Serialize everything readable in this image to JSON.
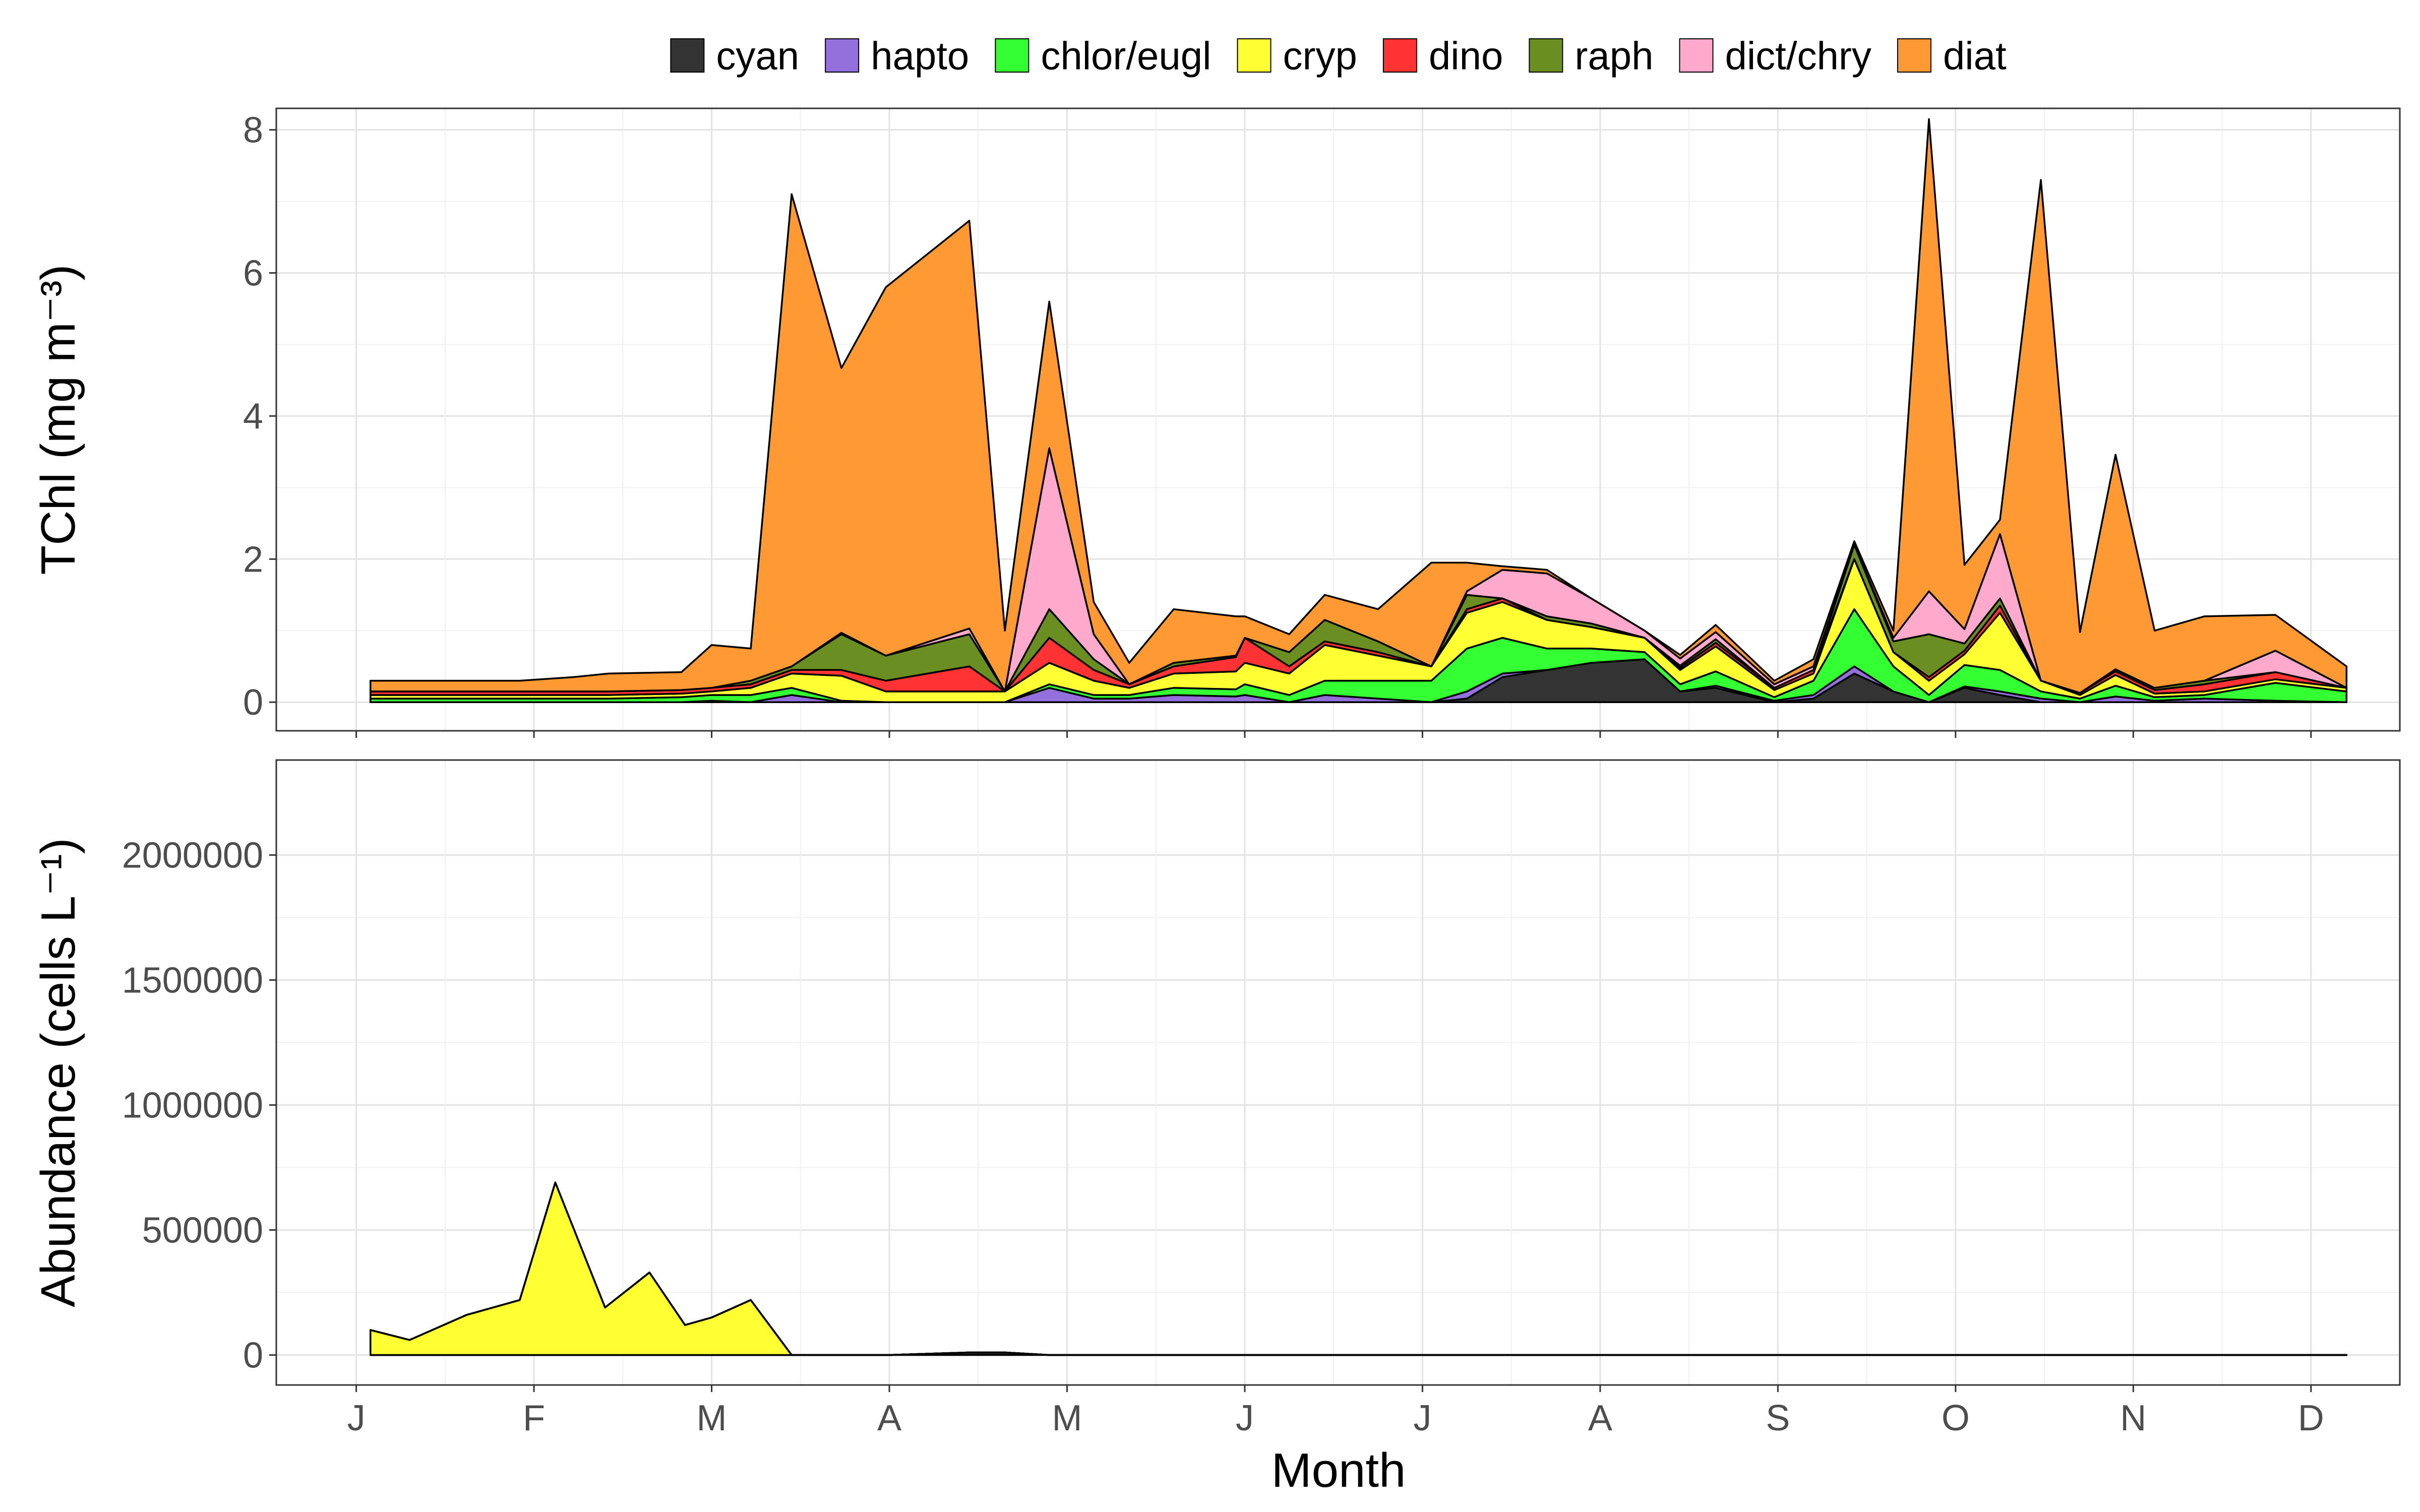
{
  "legend": {
    "items": [
      {
        "key": "cyan",
        "label": "cyan",
        "color": "#333333"
      },
      {
        "key": "hapto",
        "label": "hapto",
        "color": "#9370DB"
      },
      {
        "key": "chlor",
        "label": "chlor/eugl",
        "color": "#33FF33"
      },
      {
        "key": "cryp",
        "label": "cryp",
        "color": "#FFFF33"
      },
      {
        "key": "dino",
        "label": "dino",
        "color": "#FF3333"
      },
      {
        "key": "raph",
        "label": "raph",
        "color": "#6B8E23"
      },
      {
        "key": "dict",
        "label": "dict/chry",
        "color": "#FFAACC"
      },
      {
        "key": "diat",
        "label": "diat",
        "color": "#FF9933"
      }
    ]
  },
  "xaxis": {
    "title": "Month"
  },
  "chart_data": [
    {
      "type": "area",
      "stacked": true,
      "ylabel": "TChl (mg m⁻³)",
      "ylim": [
        -0.4,
        8.3
      ],
      "yticks": [
        0,
        2,
        4,
        6,
        8
      ],
      "xlim": [
        0.55,
        12.5
      ],
      "xticks": [
        1,
        2,
        3,
        4,
        5,
        6,
        7,
        8,
        9,
        10,
        11,
        12
      ],
      "xticklabels": [
        "J",
        "F",
        "M",
        "A",
        "M",
        "J",
        "J",
        "A",
        "S",
        "O",
        "N",
        "D"
      ],
      "grid": true,
      "x": [
        1.08,
        1.28,
        1.62,
        1.92,
        2.22,
        2.42,
        2.62,
        2.83,
        3.0,
        3.22,
        3.45,
        3.73,
        3.98,
        4.45,
        4.65,
        4.9,
        5.15,
        5.35,
        5.6,
        5.95,
        6.0,
        6.25,
        6.45,
        6.75,
        7.05,
        7.25,
        7.45,
        7.7,
        7.95,
        8.25,
        8.45,
        8.65,
        8.98,
        9.2,
        9.43,
        9.65,
        9.85,
        10.05,
        10.25,
        10.48,
        10.7,
        10.9,
        11.12,
        11.4,
        11.8,
        12.2
      ],
      "series": [
        {
          "name": "cyan",
          "values": [
            0.0,
            0.0,
            0.0,
            0.0,
            0.0,
            0.0,
            0.0,
            0.0,
            0.0,
            0.0,
            0.0,
            0.0,
            0.0,
            0.0,
            0.0,
            0.0,
            0.0,
            0.0,
            0.0,
            0.0,
            0.0,
            0.0,
            0.0,
            0.0,
            0.0,
            0.05,
            0.35,
            0.45,
            0.55,
            0.6,
            0.15,
            0.2,
            0.0,
            0.05,
            0.4,
            0.15,
            0.0,
            0.2,
            0.1,
            0.0,
            0.0,
            0.0,
            0.0,
            0.0,
            0.0,
            0.0
          ]
        },
        {
          "name": "hapto",
          "values": [
            0.0,
            0.0,
            0.0,
            0.0,
            0.0,
            0.0,
            0.0,
            0.0,
            0.02,
            0.0,
            0.1,
            0.0,
            0.0,
            0.0,
            0.0,
            0.2,
            0.05,
            0.05,
            0.1,
            0.08,
            0.1,
            0.0,
            0.1,
            0.05,
            0.0,
            0.1,
            0.05,
            0.0,
            0.0,
            0.0,
            0.0,
            0.03,
            0.02,
            0.05,
            0.1,
            0.0,
            0.0,
            0.02,
            0.05,
            0.05,
            0.0,
            0.08,
            0.02,
            0.05,
            0.02,
            0.0
          ]
        },
        {
          "name": "chlor/eugl",
          "values": [
            0.05,
            0.05,
            0.05,
            0.05,
            0.05,
            0.05,
            0.06,
            0.07,
            0.08,
            0.1,
            0.1,
            0.02,
            0.0,
            0.0,
            0.0,
            0.05,
            0.05,
            0.05,
            0.1,
            0.1,
            0.15,
            0.1,
            0.2,
            0.25,
            0.3,
            0.6,
            0.5,
            0.3,
            0.2,
            0.1,
            0.1,
            0.2,
            0.05,
            0.2,
            0.8,
            0.35,
            0.1,
            0.3,
            0.3,
            0.1,
            0.05,
            0.15,
            0.05,
            0.05,
            0.25,
            0.15
          ]
        },
        {
          "name": "cryp",
          "values": [
            0.05,
            0.05,
            0.05,
            0.05,
            0.05,
            0.05,
            0.05,
            0.05,
            0.05,
            0.1,
            0.2,
            0.35,
            0.15,
            0.15,
            0.15,
            0.3,
            0.2,
            0.1,
            0.2,
            0.25,
            0.3,
            0.3,
            0.5,
            0.35,
            0.2,
            0.5,
            0.5,
            0.4,
            0.3,
            0.2,
            0.2,
            0.35,
            0.1,
            0.1,
            0.7,
            0.2,
            0.2,
            0.15,
            0.8,
            0.15,
            0.05,
            0.15,
            0.05,
            0.05,
            0.05,
            0.05
          ]
        },
        {
          "name": "dino",
          "values": [
            0.05,
            0.05,
            0.05,
            0.05,
            0.05,
            0.05,
            0.05,
            0.05,
            0.05,
            0.05,
            0.05,
            0.08,
            0.15,
            0.35,
            0.0,
            0.35,
            0.15,
            0.05,
            0.1,
            0.2,
            0.35,
            0.1,
            0.05,
            0.05,
            0.0,
            0.05,
            0.05,
            0.0,
            0.0,
            0.0,
            0.03,
            0.05,
            0.03,
            0.05,
            0.0,
            0.0,
            0.05,
            0.05,
            0.1,
            0.0,
            0.03,
            0.05,
            0.05,
            0.1,
            0.1,
            0.0
          ]
        },
        {
          "name": "raph",
          "values": [
            0.0,
            0.0,
            0.0,
            0.0,
            0.0,
            0.0,
            0.0,
            0.0,
            0.0,
            0.05,
            0.05,
            0.5,
            0.35,
            0.45,
            0.0,
            0.4,
            0.15,
            0.0,
            0.05,
            0.02,
            0.0,
            0.2,
            0.3,
            0.15,
            0.0,
            0.2,
            0.0,
            0.05,
            0.05,
            0.0,
            0.03,
            0.05,
            0.0,
            0.0,
            0.2,
            0.15,
            0.6,
            0.1,
            0.1,
            0.0,
            0.0,
            0.03,
            0.03,
            0.05,
            0.0,
            0.0
          ]
        },
        {
          "name": "dict/chry",
          "values": [
            0.0,
            0.0,
            0.0,
            0.0,
            0.0,
            0.0,
            0.0,
            0.0,
            0.0,
            0.0,
            0.0,
            0.02,
            0.0,
            0.08,
            0.0,
            2.25,
            0.35,
            0.0,
            0.0,
            0.0,
            0.0,
            0.0,
            0.0,
            0.0,
            0.0,
            0.05,
            0.4,
            0.6,
            0.35,
            0.1,
            0.1,
            0.1,
            0.05,
            0.05,
            0.0,
            0.05,
            0.6,
            0.2,
            0.9,
            0.0,
            0.0,
            0.0,
            0.0,
            0.0,
            0.3,
            0.0
          ]
        },
        {
          "name": "diat",
          "values": [
            0.15,
            0.15,
            0.15,
            0.15,
            0.2,
            0.25,
            0.25,
            0.25,
            0.6,
            0.45,
            6.6,
            3.7,
            5.15,
            5.7,
            0.85,
            2.05,
            0.45,
            0.3,
            0.75,
            0.55,
            0.3,
            0.25,
            0.35,
            0.45,
            1.45,
            0.4,
            0.05,
            0.05,
            0.0,
            0.0,
            0.05,
            0.1,
            0.05,
            0.1,
            0.05,
            0.1,
            6.6,
            0.9,
            0.2,
            7.0,
            0.85,
            3.0,
            0.8,
            0.9,
            0.5,
            0.3
          ]
        }
      ]
    },
    {
      "type": "area",
      "stacked": true,
      "ylabel": "Abundance (cells L⁻¹)",
      "ylim": [
        -120000,
        2380000
      ],
      "yticks": [
        0,
        500000,
        1000000,
        1500000,
        2000000
      ],
      "xlim": [
        0.55,
        12.5
      ],
      "xticks": [
        1,
        2,
        3,
        4,
        5,
        6,
        7,
        8,
        9,
        10,
        11,
        12
      ],
      "xticklabels": [
        "J",
        "F",
        "M",
        "A",
        "M",
        "J",
        "J",
        "A",
        "S",
        "O",
        "N",
        "D"
      ],
      "grid": true,
      "x": [
        1.08,
        1.3,
        1.62,
        1.92,
        2.12,
        2.4,
        2.65,
        2.85,
        3.0,
        3.22,
        3.45,
        3.75,
        4.0,
        4.45,
        4.65,
        4.9,
        5.05,
        5.25,
        5.45,
        5.7,
        5.95,
        6.2,
        6.35,
        6.55,
        6.8,
        6.95,
        7.4,
        7.65,
        7.85,
        7.95,
        8.05,
        8.3,
        8.45,
        8.7,
        8.9,
        9.1,
        9.3,
        9.5,
        9.75,
        9.95,
        10.05,
        10.5,
        10.75,
        10.95,
        11.05,
        11.25,
        11.5,
        11.7,
        11.9,
        12.05,
        12.2
      ],
      "series": [
        {
          "name": "cyan",
          "values": [
            0,
            0,
            0,
            0,
            0,
            0,
            0,
            0,
            0,
            0,
            0,
            0,
            0,
            10000,
            10000,
            0,
            0,
            0,
            0,
            0,
            0,
            0,
            0,
            0,
            0,
            0,
            0,
            0,
            0,
            0,
            0,
            0,
            0,
            0,
            0,
            0,
            0,
            0,
            0,
            0,
            0,
            0,
            0,
            0,
            0,
            0,
            0,
            0,
            0,
            0,
            0
          ]
        },
        {
          "name": "hapto",
          "values": [
            0,
            0,
            0,
            0,
            0,
            0,
            0,
            0,
            0,
            0,
            0,
            0,
            0,
            0,
            0,
            0,
            0,
            0,
            0,
            0,
            0,
            0,
            0,
            0,
            0,
            0,
            0,
            0,
            0,
            0,
            0,
            0,
            0,
            0,
            0,
            0,
            0,
            0,
            0,
            0,
            0,
            0,
            0,
            0,
            0,
            0,
            0,
            0,
            0,
            0,
            0
          ]
        },
        {
          "name": "chlor/eugl",
          "values": [
            0,
            0,
            0,
            0,
            0,
            0,
            0,
            0,
            0,
            0,
            0,
            0,
            0,
            0,
            0,
            0,
            0,
            0,
            0,
            0,
            0,
            0,
            0,
            0,
            0,
            0,
            0,
            0,
            0,
            0,
            0,
            0,
            0,
            0,
            0,
            0,
            0,
            0,
            0,
            0,
            0,
            0,
            0,
            0,
            0,
            0,
            0,
            0,
            0,
            0,
            0
          ]
        },
        {
          "name": "cryp",
          "values": [
            100000,
            60000,
            160000,
            220000,
            690000,
            190000,
            330000,
            120000,
            150000,
            220000,
            0,
            0,
            0,
            0,
            0,
            0,
            0,
            0,
            0,
            0,
            0,
            0,
            0,
            0,
            0,
            0,
            0,
            0,
            0,
            0,
            0,
            0,
            0,
            0,
            0,
            0,
            0,
            0,
            0,
            0,
            0,
            0,
            0,
            0,
            0,
            0,
            0,
            0,
            0,
            0,
            0
          ]
        },
        {
          "name": "dino",
          "values": [
            0,
            0,
            0,
            0,
            0,
            0,
            0,
            0,
            0,
            0,
            0,
            0,
            0,
            0,
            0,
            0,
            0,
            0,
            0,
            0,
            0,
            0,
            0,
            0,
            0,
            0,
            0,
            0,
            0,
            0,
            0,
            0,
            0,
            0,
            0,
            0,
            0,
            0,
            0,
            0,
            0,
            0,
            0,
            0,
            0,
            0,
            0,
            0,
            0,
            0,
            0
          ]
        },
        {
          "name": "raph",
          "values": [
            0,
            0,
            0,
            0,
            0,
            0,
            0,
            0,
            0,
            0,
            0,
            0,
            0,
            0,
            0,
            0,
            0,
            0,
            0,
            0,
            0,
            0,
            0,
            0,
            0,
            0,
            0,
            0,
            0,
            0,
            0,
            0,
            0,
            0,
            0,
            0,
            0,
            0,
            0,
            0,
            0,
            0,
            0,
            0,
            0,
            0,
            0,
            0,
            0,
            0,
            0
          ]
        },
        {
          "name": "dict/chry",
          "values": [
            0,
            0,
            0,
            0,
            0,
            0,
            0,
            0,
            0,
            0,
            0,
            0,
            0,
            0,
            0,
            0,
            0,
            0,
            0,
            0,
            0,
            0,
            0,
            0,
            0,
            0,
            0,
            0,
            0,
            0,
            0,
            0,
            0,
            0,
            0,
            0,
            0,
            0,
            0,
            0,
            0,
            0,
            0,
            0,
            0,
            0,
            0,
            0,
            0,
            0,
            0
          ]
        },
        {
          "name": "diat",
          "values": [
            0,
            0,
            0,
            0,
            0,
            0,
            0,
            0,
            0,
            0,
            0,
            0,
            0,
            0,
            0,
            0,
            0,
            0,
            0,
            0,
            0,
            0,
            0,
            0,
            0,
            0,
            0,
            0,
            0,
            0,
            0,
            0,
            0,
            0,
            0,
            0,
            0,
            0,
            0,
            0,
            0,
            0,
            0,
            0,
            0,
            0,
            0,
            0,
            0,
            0,
            0
          ]
        }
      ]
    }
  ]
}
